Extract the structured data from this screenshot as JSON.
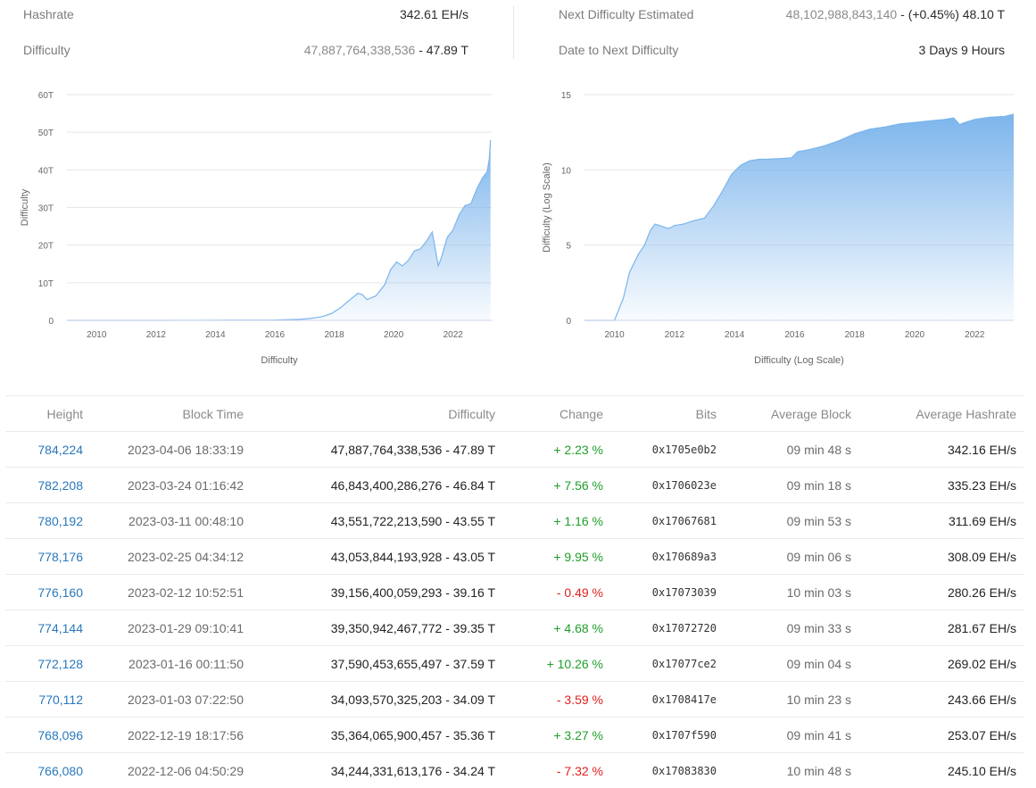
{
  "stats": {
    "hashrate": {
      "label": "Hashrate",
      "value": "342.61 EH/s"
    },
    "difficulty": {
      "label": "Difficulty",
      "number": "47,887,764,338,536",
      "separator": " - ",
      "short": "47.89 T"
    },
    "next_difficulty": {
      "label": "Next Difficulty Estimated",
      "number": "48,102,988,843,140",
      "separator": " - ",
      "short": "(+0.45%) 48.10 T"
    },
    "date_next": {
      "label": "Date to Next Difficulty",
      "value": "3 Days 9 Hours"
    }
  },
  "chart_data": [
    {
      "type": "area",
      "title": "",
      "xlabel": "Difficulty",
      "ylabel": "Difficulty",
      "xlim": [
        2009.0,
        2023.3
      ],
      "ylim": [
        0,
        60
      ],
      "y_unit": "T",
      "yticks": [
        "0",
        "10T",
        "20T",
        "30T",
        "40T",
        "50T",
        "60T"
      ],
      "xticks": [
        "2010",
        "2012",
        "2014",
        "2016",
        "2018",
        "2020",
        "2022"
      ],
      "grid": true,
      "color": "#7cb5ec",
      "series": [
        {
          "x": [
            2009.0,
            2012.0,
            2014.0,
            2015.0,
            2016.0,
            2016.8,
            2017.2,
            2017.6,
            2017.9,
            2018.2,
            2018.5,
            2018.8,
            2018.95,
            2019.1,
            2019.4,
            2019.7,
            2019.9,
            2020.1,
            2020.3,
            2020.5,
            2020.7,
            2020.9,
            2021.1,
            2021.3,
            2021.5,
            2021.6,
            2021.8,
            2022.0,
            2022.2,
            2022.4,
            2022.6,
            2022.8,
            2023.0,
            2023.15,
            2023.22,
            2023.26
          ],
          "y": [
            0,
            0.002,
            0.05,
            0.06,
            0.1,
            0.25,
            0.5,
            1.0,
            1.8,
            3.3,
            5.3,
            7.2,
            6.8,
            5.5,
            6.5,
            9.5,
            13.5,
            15.5,
            14.5,
            16.0,
            18.5,
            19.0,
            21.0,
            23.5,
            14.5,
            16.5,
            22.0,
            24.0,
            28.0,
            30.5,
            31.0,
            35.0,
            38.0,
            39.5,
            43.0,
            47.9
          ]
        }
      ]
    },
    {
      "type": "area",
      "title": "",
      "xlabel": "Difficulty (Log Scale)",
      "ylabel": "Difficulty (Log Scale)",
      "xlim": [
        2009.0,
        2023.3
      ],
      "ylim": [
        0,
        15
      ],
      "yticks": [
        "0",
        "5",
        "10",
        "15"
      ],
      "xticks": [
        "2010",
        "2012",
        "2014",
        "2016",
        "2018",
        "2020",
        "2022"
      ],
      "grid": true,
      "color": "#7cb5ec",
      "series": [
        {
          "x": [
            2009.0,
            2010.0,
            2010.1,
            2010.3,
            2010.5,
            2010.8,
            2011.0,
            2011.2,
            2011.35,
            2011.5,
            2011.8,
            2012.0,
            2012.3,
            2012.6,
            2013.0,
            2013.3,
            2013.6,
            2013.9,
            2014.2,
            2014.5,
            2014.8,
            2015.0,
            2015.5,
            2015.9,
            2016.1,
            2016.5,
            2017.0,
            2017.5,
            2018.0,
            2018.5,
            2019.0,
            2019.5,
            2020.0,
            2020.5,
            2021.0,
            2021.3,
            2021.5,
            2021.6,
            2022.0,
            2022.5,
            2023.0,
            2023.3
          ],
          "y": [
            0,
            0,
            0.5,
            1.5,
            3.2,
            4.4,
            5.0,
            6.0,
            6.4,
            6.3,
            6.1,
            6.3,
            6.4,
            6.6,
            6.8,
            7.6,
            8.6,
            9.7,
            10.3,
            10.6,
            10.7,
            10.7,
            10.75,
            10.8,
            11.2,
            11.35,
            11.6,
            11.95,
            12.4,
            12.7,
            12.85,
            13.05,
            13.15,
            13.25,
            13.35,
            13.45,
            13.0,
            13.1,
            13.35,
            13.5,
            13.55,
            13.7
          ]
        }
      ]
    }
  ],
  "table": {
    "headers": [
      "Height",
      "Block Time",
      "Difficulty",
      "Change",
      "Bits",
      "Average Block",
      "Average Hashrate"
    ],
    "rows": [
      {
        "height": "784,224",
        "time": "2023-04-06 18:33:19",
        "difficulty": "47,887,764,338,536 - 47.89 T",
        "change": "+ 2.23 %",
        "dir": "pos",
        "bits": "0x1705e0b2",
        "avg_block": "09 min 48 s",
        "avg_hashrate": "342.16 EH/s"
      },
      {
        "height": "782,208",
        "time": "2023-03-24 01:16:42",
        "difficulty": "46,843,400,286,276 - 46.84 T",
        "change": "+ 7.56 %",
        "dir": "pos",
        "bits": "0x1706023e",
        "avg_block": "09 min 18 s",
        "avg_hashrate": "335.23 EH/s"
      },
      {
        "height": "780,192",
        "time": "2023-03-11 00:48:10",
        "difficulty": "43,551,722,213,590 - 43.55 T",
        "change": "+ 1.16 %",
        "dir": "pos",
        "bits": "0x17067681",
        "avg_block": "09 min 53 s",
        "avg_hashrate": "311.69 EH/s"
      },
      {
        "height": "778,176",
        "time": "2023-02-25 04:34:12",
        "difficulty": "43,053,844,193,928 - 43.05 T",
        "change": "+ 9.95 %",
        "dir": "pos",
        "bits": "0x170689a3",
        "avg_block": "09 min 06 s",
        "avg_hashrate": "308.09 EH/s"
      },
      {
        "height": "776,160",
        "time": "2023-02-12 10:52:51",
        "difficulty": "39,156,400,059,293 - 39.16 T",
        "change": "- 0.49 %",
        "dir": "neg",
        "bits": "0x17073039",
        "avg_block": "10 min 03 s",
        "avg_hashrate": "280.26 EH/s"
      },
      {
        "height": "774,144",
        "time": "2023-01-29 09:10:41",
        "difficulty": "39,350,942,467,772 - 39.35 T",
        "change": "+ 4.68 %",
        "dir": "pos",
        "bits": "0x17072720",
        "avg_block": "09 min 33 s",
        "avg_hashrate": "281.67 EH/s"
      },
      {
        "height": "772,128",
        "time": "2023-01-16 00:11:50",
        "difficulty": "37,590,453,655,497 - 37.59 T",
        "change": "+ 10.26 %",
        "dir": "pos",
        "bits": "0x17077ce2",
        "avg_block": "09 min 04 s",
        "avg_hashrate": "269.02 EH/s"
      },
      {
        "height": "770,112",
        "time": "2023-01-03 07:22:50",
        "difficulty": "34,093,570,325,203 - 34.09 T",
        "change": "- 3.59 %",
        "dir": "neg",
        "bits": "0x1708417e",
        "avg_block": "10 min 23 s",
        "avg_hashrate": "243.66 EH/s"
      },
      {
        "height": "768,096",
        "time": "2022-12-19 18:17:56",
        "difficulty": "35,364,065,900,457 - 35.36 T",
        "change": "+ 3.27 %",
        "dir": "pos",
        "bits": "0x1707f590",
        "avg_block": "09 min 41 s",
        "avg_hashrate": "253.07 EH/s"
      },
      {
        "height": "766,080",
        "time": "2022-12-06 04:50:29",
        "difficulty": "34,244,331,613,176 - 34.24 T",
        "change": "- 7.32 %",
        "dir": "neg",
        "bits": "0x17083830",
        "avg_block": "10 min 48 s",
        "avg_hashrate": "245.10 EH/s"
      }
    ]
  }
}
